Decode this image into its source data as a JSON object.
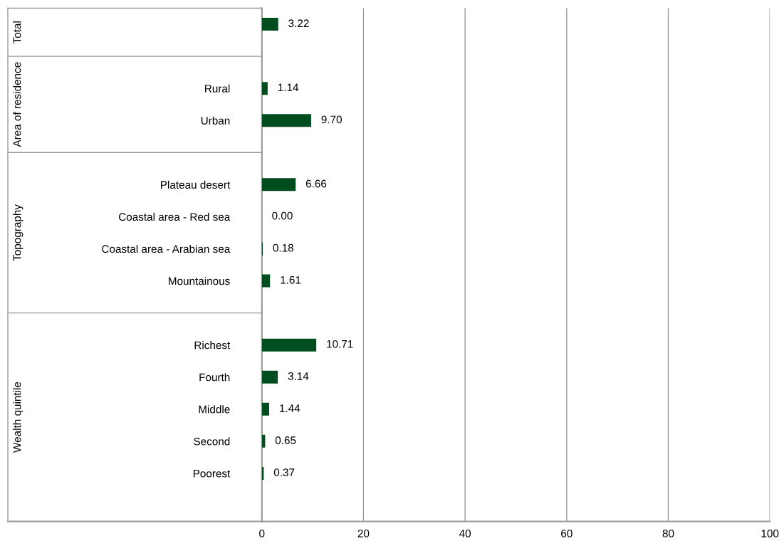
{
  "chart_data": {
    "type": "bar",
    "orientation": "horizontal",
    "categories": [
      null,
      null,
      "Rural",
      "Urban",
      null,
      "Plateau desert",
      "Coastal area - Red sea",
      "Coastal area - Arabian sea",
      "Mountainous",
      null,
      "Richest",
      "Fourth",
      "Middle",
      "Second",
      "Poorest",
      null
    ],
    "values": [
      3.22,
      null,
      1.14,
      9.7,
      null,
      6.66,
      0.0,
      0.18,
      1.61,
      null,
      10.71,
      3.14,
      1.44,
      0.65,
      0.37,
      null
    ],
    "value_labels": [
      "3.22",
      null,
      "1.14",
      "9.70",
      null,
      "6.66",
      "0.00",
      "0.18",
      "1.61",
      null,
      "10.71",
      "3.14",
      "1.44",
      "0.65",
      "0.37",
      null
    ],
    "color": "#004d1f",
    "xlim": [
      0,
      100
    ],
    "xticks": [
      0,
      20,
      40,
      60,
      80,
      100
    ],
    "grid": "x",
    "annotations": [
      "Total",
      "Area of residence",
      "Topography",
      "Wealth quintile"
    ]
  }
}
